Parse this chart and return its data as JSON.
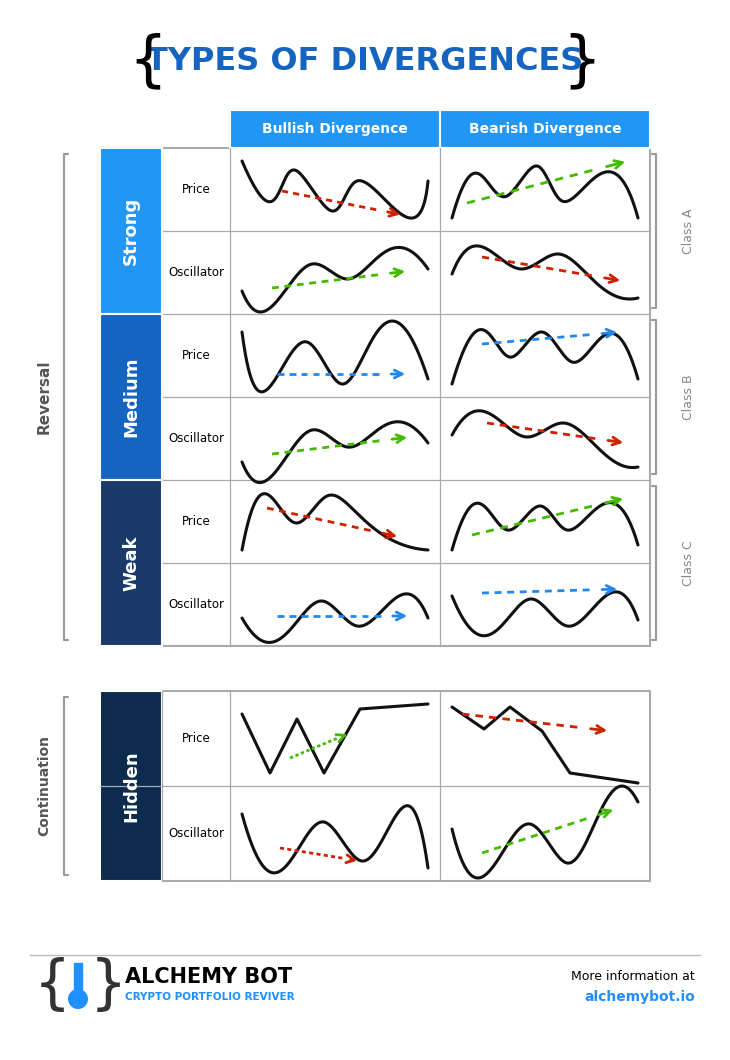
{
  "title": "TYPES OF DIVERGENCES",
  "title_color": "#1565C0",
  "col_headers": [
    "Bullish Divergence",
    "Bearish Divergence"
  ],
  "row_groups": [
    "Strong",
    "Medium",
    "Weak"
  ],
  "class_labels": [
    "Class A",
    "Class B",
    "Class C"
  ],
  "reversal_label": "Reversal",
  "continuation_label": "Continuation",
  "hidden_label": "Hidden",
  "footer_brand": "ALCHEMY BOT",
  "footer_sub": "CRYPTO PORTFOLIO REVIVER",
  "footer_url": "alchemybot.io",
  "footer_more": "More information at",
  "group_colors": [
    "#2196F3",
    "#1565C0",
    "#1A3A6B"
  ],
  "header_color": "#2196F3",
  "hidden_color": "#0D2B4E",
  "red": "#CC2200",
  "green": "#44BB00",
  "blue": "#2288EE",
  "line_color": "#111111",
  "grid_color": "#AAAAAA",
  "brace_color": "#999999",
  "class_color": "#888888"
}
